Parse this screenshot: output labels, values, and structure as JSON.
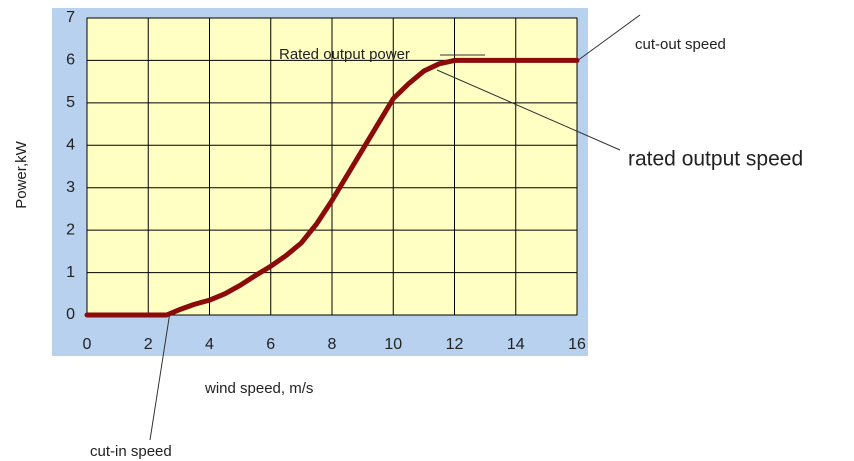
{
  "chart_data": {
    "type": "line",
    "x_label": "wind speed, m/s",
    "y_label": "Power,kW",
    "x": [
      0,
      1,
      2,
      2.6,
      3,
      3.5,
      4,
      4.5,
      5,
      5.5,
      6,
      6.5,
      7,
      7.5,
      8,
      8.5,
      9,
      9.5,
      10,
      10.5,
      11,
      11.5,
      12,
      12.5,
      13,
      14,
      15,
      16
    ],
    "values": [
      0,
      0,
      0,
      0,
      0.12,
      0.25,
      0.35,
      0.5,
      0.7,
      0.93,
      1.15,
      1.4,
      1.7,
      2.15,
      2.7,
      3.3,
      3.9,
      4.5,
      5.1,
      5.45,
      5.75,
      5.92,
      6.0,
      6.0,
      6.0,
      6.0,
      6.0,
      6.0
    ],
    "color": "#8b0a0a",
    "xlim": [
      0,
      16
    ],
    "xticks": [
      0,
      2,
      4,
      6,
      8,
      10,
      12,
      14,
      16
    ],
    "ylim": [
      0,
      7
    ],
    "yticks": [
      0,
      1,
      2,
      3,
      4,
      5,
      6,
      7
    ],
    "grid": true,
    "annotations": [
      "Rated output power",
      "cut-out speed",
      "rated output speed",
      "cut-in speed"
    ]
  }
}
